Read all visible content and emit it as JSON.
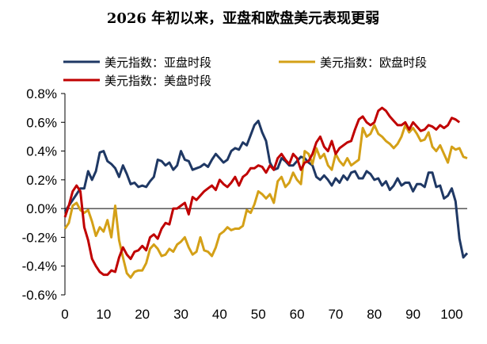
{
  "chart_data": {
    "type": "line",
    "title": "2026 年初以来，亚盘和欧盘美元表现更弱",
    "xlabel": "",
    "ylabel": "",
    "xlim": [
      0,
      104
    ],
    "ylim": [
      -0.6,
      0.8
    ],
    "x_ticks": [
      0,
      10,
      20,
      30,
      40,
      50,
      60,
      70,
      80,
      90,
      100
    ],
    "x_tick_labels": [
      "0",
      "10",
      "20",
      "30",
      "40",
      "50",
      "60",
      "70",
      "80",
      "90",
      "100"
    ],
    "y_ticks": [
      -0.6,
      -0.4,
      -0.2,
      0.0,
      0.2,
      0.4,
      0.6,
      0.8
    ],
    "y_tick_labels": [
      "-0.6%",
      "-0.4%",
      "-0.2%",
      "0.0%",
      "0.2%",
      "0.4%",
      "0.6%",
      "0.8%"
    ],
    "grid": false,
    "legend_position": "top",
    "series": [
      {
        "name": "美元指数：亚盘时段",
        "color": "#1f3864",
        "x": [
          0,
          1,
          2,
          3,
          4,
          5,
          6,
          7,
          8,
          9,
          10,
          11,
          12,
          13,
          14,
          15,
          16,
          17,
          18,
          19,
          20,
          21,
          22,
          23,
          24,
          25,
          26,
          27,
          28,
          29,
          30,
          31,
          32,
          33,
          34,
          35,
          36,
          37,
          38,
          39,
          40,
          41,
          42,
          43,
          44,
          45,
          46,
          47,
          48,
          49,
          50,
          51,
          52,
          53,
          54,
          55,
          56,
          57,
          58,
          59,
          60,
          61,
          62,
          63,
          64,
          65,
          66,
          67,
          68,
          69,
          70,
          71,
          72,
          73,
          74,
          75,
          76,
          77,
          78,
          79,
          80,
          81,
          82,
          83,
          84,
          85,
          86,
          87,
          88,
          89,
          90,
          91,
          92,
          93,
          94,
          95,
          96,
          97,
          98,
          99,
          100,
          101,
          102,
          103
        ],
        "values": [
          -0.02,
          0.02,
          0.06,
          0.1,
          0.14,
          0.14,
          0.26,
          0.2,
          0.26,
          0.39,
          0.4,
          0.33,
          0.31,
          0.28,
          0.22,
          0.3,
          0.24,
          0.17,
          0.18,
          0.15,
          0.16,
          0.15,
          0.19,
          0.22,
          0.34,
          0.33,
          0.3,
          0.32,
          0.27,
          0.3,
          0.4,
          0.34,
          0.33,
          0.27,
          0.28,
          0.29,
          0.31,
          0.29,
          0.34,
          0.38,
          0.35,
          0.32,
          0.34,
          0.4,
          0.42,
          0.41,
          0.46,
          0.44,
          0.51,
          0.58,
          0.61,
          0.53,
          0.47,
          0.32,
          0.27,
          0.28,
          0.35,
          0.33,
          0.3,
          0.3,
          0.33,
          0.36,
          0.35,
          0.32,
          0.3,
          0.22,
          0.2,
          0.23,
          0.2,
          0.16,
          0.21,
          0.18,
          0.23,
          0.2,
          0.25,
          0.26,
          0.21,
          0.21,
          0.26,
          0.24,
          0.2,
          0.21,
          0.16,
          0.19,
          0.13,
          0.16,
          0.21,
          0.16,
          0.18,
          0.18,
          0.12,
          0.17,
          0.17,
          0.15,
          0.25,
          0.25,
          0.15,
          0.16,
          0.07,
          0.09,
          0.14,
          0.05,
          -0.21,
          -0.34
        ],
        "x_tail": [
          104
        ],
        "values_tail": [
          -0.31
        ]
      },
      {
        "name": "美元指数：欧盘时段",
        "color": "#d4a017",
        "x": [
          0,
          1,
          2,
          3,
          4,
          5,
          6,
          7,
          8,
          9,
          10,
          11,
          12,
          13,
          14,
          15,
          16,
          17,
          18,
          19,
          20,
          21,
          22,
          23,
          24,
          25,
          26,
          27,
          28,
          29,
          30,
          31,
          32,
          33,
          34,
          35,
          36,
          37,
          38,
          39,
          40,
          41,
          42,
          43,
          44,
          45,
          46,
          47,
          48,
          49,
          50,
          51,
          52,
          53,
          54,
          55,
          56,
          57,
          58,
          59,
          60,
          61,
          62,
          63,
          64,
          65,
          66,
          67,
          68,
          69,
          70,
          71,
          72,
          73,
          74,
          75,
          76,
          77,
          78,
          79,
          80,
          81,
          82,
          83,
          84,
          85,
          86,
          87,
          88,
          89,
          90,
          91,
          92,
          93,
          94,
          95,
          96,
          97,
          98,
          99,
          100,
          101,
          102,
          103,
          104
        ],
        "values": [
          -0.14,
          -0.1,
          0.02,
          0.04,
          -0.01,
          -0.03,
          -0.01,
          -0.09,
          -0.19,
          -0.13,
          -0.16,
          -0.08,
          -0.2,
          0.02,
          -0.22,
          -0.34,
          -0.45,
          -0.48,
          -0.44,
          -0.43,
          -0.43,
          -0.38,
          -0.28,
          -0.25,
          -0.28,
          -0.33,
          -0.32,
          -0.28,
          -0.3,
          -0.25,
          -0.23,
          -0.2,
          -0.27,
          -0.32,
          -0.3,
          -0.2,
          -0.29,
          -0.3,
          -0.33,
          -0.27,
          -0.18,
          -0.16,
          -0.13,
          -0.15,
          -0.14,
          -0.14,
          -0.12,
          -0.01,
          -0.03,
          0.03,
          0.12,
          0.1,
          0.07,
          0.1,
          0.04,
          0.19,
          0.22,
          0.15,
          0.18,
          0.25,
          0.2,
          0.17,
          0.4,
          0.38,
          0.31,
          0.42,
          0.35,
          0.38,
          0.3,
          0.27,
          0.38,
          0.33,
          0.3,
          0.35,
          0.3,
          0.32,
          0.34,
          0.56,
          0.5,
          0.52,
          0.58,
          0.52,
          0.5,
          0.47,
          0.45,
          0.42,
          0.45,
          0.5,
          0.58,
          0.53,
          0.56,
          0.52,
          0.47,
          0.48,
          0.53,
          0.43,
          0.4,
          0.44,
          0.38,
          0.32,
          0.43,
          0.41,
          0.42,
          0.36,
          0.35
        ]
      },
      {
        "name": "美元指数：美盘时段",
        "color": "#c00000",
        "x": [
          0,
          1,
          2,
          3,
          4,
          5,
          6,
          7,
          8,
          9,
          10,
          11,
          12,
          13,
          14,
          15,
          16,
          17,
          18,
          19,
          20,
          21,
          22,
          23,
          24,
          25,
          26,
          27,
          28,
          29,
          30,
          31,
          32,
          33,
          34,
          35,
          36,
          37,
          38,
          39,
          40,
          41,
          42,
          43,
          44,
          45,
          46,
          47,
          48,
          49,
          50,
          51,
          52,
          53,
          54,
          55,
          56,
          57,
          58,
          59,
          60,
          61,
          62,
          63,
          64,
          65,
          66,
          67,
          68,
          69,
          70,
          71,
          72,
          73,
          74,
          75,
          76,
          77,
          78,
          79,
          80,
          81,
          82,
          83,
          84,
          85,
          86,
          87,
          88,
          89,
          90,
          91,
          92,
          93,
          94,
          95,
          96,
          97,
          98,
          99,
          100,
          101,
          102
        ],
        "values": [
          -0.06,
          0.02,
          0.12,
          0.16,
          0.12,
          -0.13,
          -0.22,
          -0.35,
          -0.4,
          -0.44,
          -0.46,
          -0.46,
          -0.43,
          -0.44,
          -0.34,
          -0.27,
          -0.32,
          -0.35,
          -0.3,
          -0.29,
          -0.26,
          -0.29,
          -0.2,
          -0.18,
          -0.21,
          -0.14,
          -0.1,
          -0.11,
          0.0,
          0.0,
          0.02,
          0.04,
          -0.04,
          0.08,
          0.06,
          0.09,
          0.12,
          0.14,
          0.16,
          0.13,
          0.2,
          0.17,
          0.15,
          0.18,
          0.22,
          0.16,
          0.22,
          0.24,
          0.28,
          0.28,
          0.3,
          0.29,
          0.25,
          0.3,
          0.27,
          0.35,
          0.38,
          0.34,
          0.31,
          0.38,
          0.35,
          0.27,
          0.32,
          0.33,
          0.38,
          0.46,
          0.5,
          0.43,
          0.4,
          0.47,
          0.38,
          0.42,
          0.44,
          0.46,
          0.47,
          0.55,
          0.62,
          0.64,
          0.6,
          0.58,
          0.6,
          0.68,
          0.7,
          0.68,
          0.64,
          0.61,
          0.58,
          0.58,
          0.6,
          0.55,
          0.6,
          0.57,
          0.54,
          0.55,
          0.58,
          0.57,
          0.55,
          0.58,
          0.56,
          0.58,
          0.63,
          0.62,
          0.6
        ]
      }
    ]
  }
}
